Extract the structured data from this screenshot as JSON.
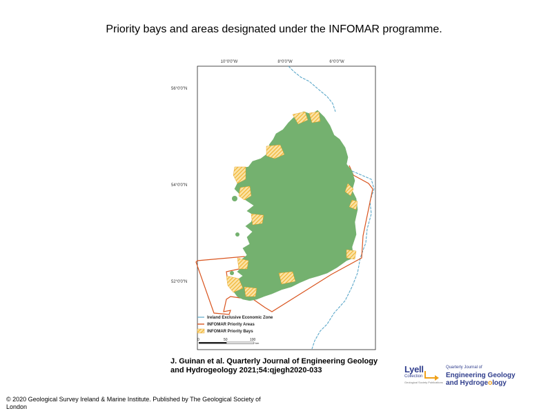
{
  "title": "Priority bays and areas designated under the INFOMAR programme.",
  "map": {
    "lon_labels": [
      "10°0'0\"W",
      "8°0'0\"W",
      "6°0'0\"W"
    ],
    "lat_labels": [
      "56°0'0\"N",
      "54°0'0\"N",
      "52°0'0\"N"
    ],
    "colors": {
      "land": "#74b16f",
      "eez": "#5aa7c9",
      "priority_area": "#d9541e",
      "priority_bay": "#f0b432"
    },
    "legend": [
      {
        "label": "Ireland Exclusive Economic Zone"
      },
      {
        "label": "INFOMAR Priority Areas"
      },
      {
        "label": "INFOMAR Priority Bays"
      }
    ],
    "scale": {
      "ticks": [
        "0",
        "50",
        "100"
      ],
      "unit": "km"
    }
  },
  "citation": {
    "line1": "J. Guinan et al. Quarterly Journal of Engineering Geology",
    "line2": "and Hydrogeology 2021;54:qjegh2020-033"
  },
  "copyright": {
    "line1": "© 2020 Geological Survey Ireland & Marine Institute. Published by The Geological Society of",
    "line2": "London"
  },
  "lyell_logo": {
    "name": "Lyell",
    "sub": "Collection",
    "tag": "Geological Society Publications"
  },
  "journal_logo": {
    "small1": "Quarterly Journal of",
    "line1": "Engineering Geology",
    "line2_a": "and Hydroge",
    "line2_b": "o",
    "line2_c": "logy"
  }
}
